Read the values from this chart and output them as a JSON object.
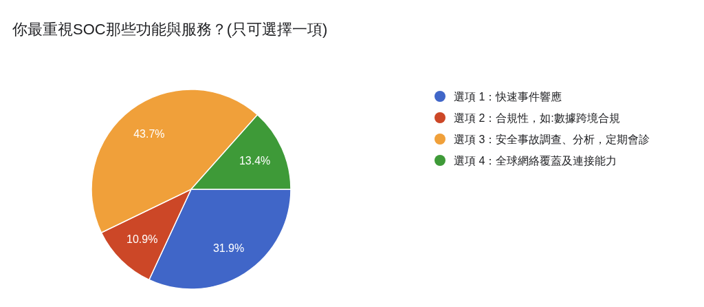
{
  "chart_data": {
    "type": "pie",
    "title": "你最重視SOC那些功能與服務？(只可選擇一項)",
    "categories": [
      "選項 1：快速事件響應",
      "選項 2：合規性，如:數據跨境合規",
      "選項 3：安全事故調查、分析，定期會診",
      "選項 4：全球網絡覆蓋及連接能力"
    ],
    "values": [
      31.9,
      10.9,
      43.7,
      13.4
    ],
    "colors": [
      "#4066c8",
      "#cc4727",
      "#f0a03a",
      "#3e9a38"
    ],
    "value_labels": [
      "31.9%",
      "10.9%",
      "43.7%",
      "13.4%"
    ],
    "legend": "right"
  }
}
